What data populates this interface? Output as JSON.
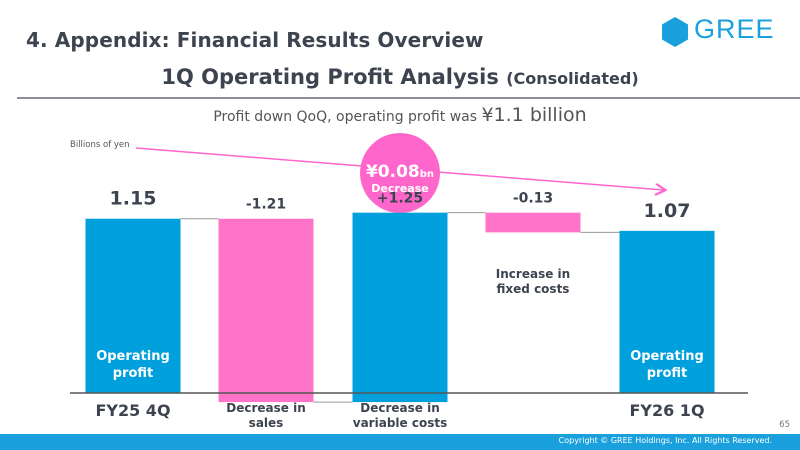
{
  "section_title": "4. Appendix: Financial Results Overview",
  "logo_text": "GREE",
  "slide_title": "1Q Operating Profit Analysis",
  "slide_subtitle": "(Consolidated)",
  "summary_text": "Profit down QoQ, operating profit was",
  "summary_amount": "¥1.1 billion",
  "unit_label": "Billions of yen",
  "callout": {
    "amount": "¥0.08",
    "unit": "bn",
    "label": "Decrease"
  },
  "chart_data": {
    "type": "waterfall",
    "title": "1Q Operating Profit Analysis (Consolidated)",
    "unit": "Billions of yen",
    "ylim": [
      0,
      1.3
    ],
    "steps": [
      {
        "label": "FY25 4Q",
        "kind": "total",
        "value": 1.15,
        "display": "1.15",
        "inner_label": "Operating profit"
      },
      {
        "label": "Decrease in sales",
        "kind": "delta",
        "value": -1.21,
        "display": "-1.21",
        "inner_label": ""
      },
      {
        "label": "Decrease in variable costs",
        "kind": "delta",
        "value": 1.25,
        "display": "+1.25",
        "inner_label": ""
      },
      {
        "label": "Increase in fixed costs",
        "kind": "delta",
        "value": -0.13,
        "display": "-0.13",
        "inner_label": ""
      },
      {
        "label": "FY26 1Q",
        "kind": "total",
        "value": 1.07,
        "display": "1.07",
        "inner_label": "Operating profit"
      }
    ],
    "colors": {
      "total": "#00a0dc",
      "negative": "#ff73c8",
      "connector": "#9a9a9a",
      "axis": "#555555",
      "trend": "#ff66cc"
    }
  },
  "footer": {
    "copyright": "Copyright © GREE Holdings, Inc. All Rights Reserved.",
    "page_number": "65"
  }
}
